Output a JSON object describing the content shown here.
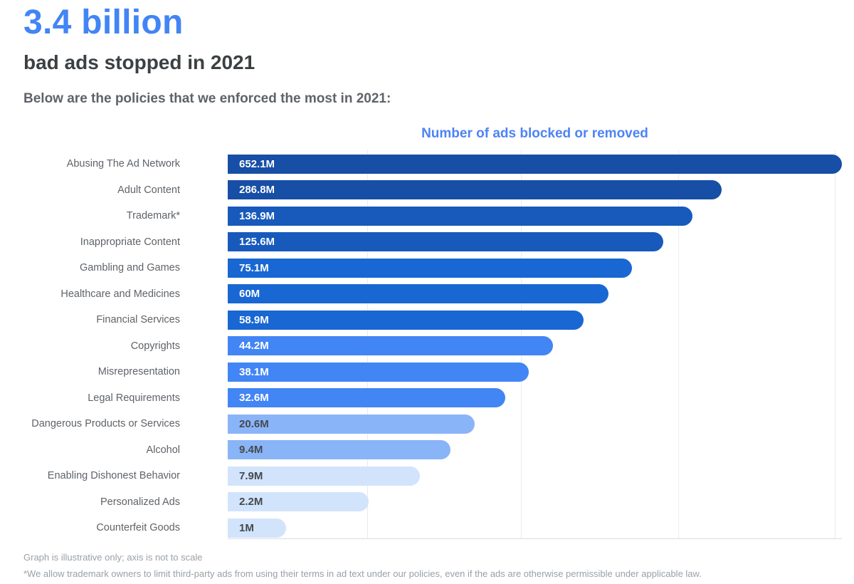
{
  "header": {
    "headline": "3.4 billion",
    "subtitle": "bad ads stopped in 2021",
    "intro": "Below are the policies that we enforced the most in 2021:"
  },
  "chart_data": {
    "type": "bar",
    "orientation": "horizontal",
    "title": "Number of ads blocked or removed",
    "unit": "millions of ads",
    "axis_note": "Graph is illustrative only; axis is not to scale",
    "grid": "vertical gridlines, axis not to scale",
    "categories": [
      "Abusing The Ad Network",
      "Adult Content",
      "Trademark*",
      "Inappropriate Content",
      "Gambling and Games",
      "Healthcare and Medicines",
      "Financial Services",
      "Copyrights",
      "Misrepresentation",
      "Legal Requirements",
      "Dangerous Products or Services",
      "Alcohol",
      "Enabling Dishonest Behavior",
      "Personalized Ads",
      "Counterfeit Goods"
    ],
    "values_millions": [
      652.1,
      286.8,
      136.9,
      125.6,
      75.1,
      60,
      58.9,
      44.2,
      38.1,
      32.6,
      20.6,
      9.4,
      7.9,
      2.2,
      1
    ],
    "rows": [
      {
        "label": "Abusing The Ad Network",
        "value": "652.1M",
        "millions": 652.1,
        "length_pct": 100,
        "color": "#174EA6",
        "value_color": "#FFFFFF"
      },
      {
        "label": "Adult Content",
        "value": "286.8M",
        "millions": 286.8,
        "length_pct": 80.4,
        "color": "#174EA6",
        "value_color": "#FFFFFF"
      },
      {
        "label": "Trademark*",
        "value": "136.9M",
        "millions": 136.9,
        "length_pct": 75.7,
        "color": "#185ABC",
        "value_color": "#FFFFFF"
      },
      {
        "label": "Inappropriate Content",
        "value": "125.6M",
        "millions": 125.6,
        "length_pct": 70.9,
        "color": "#185ABC",
        "value_color": "#FFFFFF"
      },
      {
        "label": "Gambling and Games",
        "value": "75.1M",
        "millions": 75.1,
        "length_pct": 65.8,
        "color": "#1967D2",
        "value_color": "#FFFFFF"
      },
      {
        "label": "Healthcare and Medicines",
        "value": "60M",
        "millions": 60,
        "length_pct": 62.0,
        "color": "#1967D2",
        "value_color": "#FFFFFF"
      },
      {
        "label": "Financial Services",
        "value": "58.9M",
        "millions": 58.9,
        "length_pct": 57.9,
        "color": "#1967D2",
        "value_color": "#FFFFFF"
      },
      {
        "label": "Copyrights",
        "value": "44.2M",
        "millions": 44.2,
        "length_pct": 52.9,
        "color": "#4285F4",
        "value_color": "#FFFFFF"
      },
      {
        "label": "Misrepresentation",
        "value": "38.1M",
        "millions": 38.1,
        "length_pct": 49.0,
        "color": "#4285F4",
        "value_color": "#FFFFFF"
      },
      {
        "label": "Legal Requirements",
        "value": "32.6M",
        "millions": 32.6,
        "length_pct": 45.2,
        "color": "#4285F4",
        "value_color": "#FFFFFF"
      },
      {
        "label": "Dangerous Products or Services",
        "value": "20.6M",
        "millions": 20.6,
        "length_pct": 40.2,
        "color": "#8AB4F8",
        "value_color": "#45494D"
      },
      {
        "label": "Alcohol",
        "value": "9.4M",
        "millions": 9.4,
        "length_pct": 36.3,
        "color": "#8AB4F8",
        "value_color": "#45494D"
      },
      {
        "label": "Enabling Dishonest Behavior",
        "value": "7.9M",
        "millions": 7.9,
        "length_pct": 31.3,
        "color": "#D2E3FC",
        "value_color": "#45494D"
      },
      {
        "label": "Personalized Ads",
        "value": "2.2M",
        "millions": 2.2,
        "length_pct": 22.9,
        "color": "#D2E3FC",
        "value_color": "#45494D"
      },
      {
        "label": "Counterfeit Goods",
        "value": "1M",
        "millions": 1,
        "length_pct": 9.5,
        "color": "#D2E3FC",
        "value_color": "#45494D"
      }
    ]
  },
  "footer": {
    "note1": "Graph is illustrative only; axis is not to scale",
    "note2": "*We allow trademark owners to limit third-party ads from using their terms in ad text under our policies, even if the ads are otherwise permissible under applicable law."
  },
  "colors": {
    "headline_blue": "#4285F4",
    "chart_title_blue": "#4C84F4",
    "dark_text": "#3C4043",
    "muted_text": "#5F6368",
    "footnote_text": "#9AA0A6",
    "gridline": "#E9EBEE",
    "bar_scale_dark_to_light": [
      "#174EA6",
      "#185ABC",
      "#1967D2",
      "#4285F4",
      "#8AB4F8",
      "#D2E3FC"
    ]
  }
}
